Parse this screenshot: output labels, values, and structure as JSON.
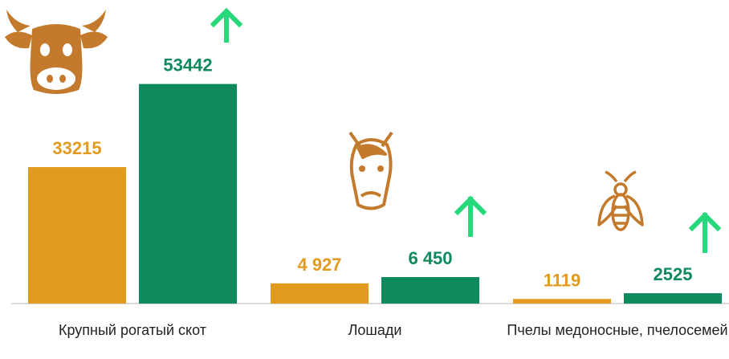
{
  "chart_data": {
    "type": "bar",
    "categories": [
      "Крупный рогатый скот",
      "Лошади",
      "Пчелы медоносные, пчелосемей"
    ],
    "series": [
      {
        "color": "#e29b1f",
        "values": [
          33215,
          4927,
          1119
        ],
        "value_labels": [
          "33215",
          "4 927",
          "1119"
        ]
      },
      {
        "color": "#0f8a5c",
        "values": [
          53442,
          6450,
          2525
        ],
        "value_labels": [
          "53442",
          "6 450",
          "2525"
        ]
      }
    ],
    "ylim": [
      0,
      60000
    ]
  }
}
